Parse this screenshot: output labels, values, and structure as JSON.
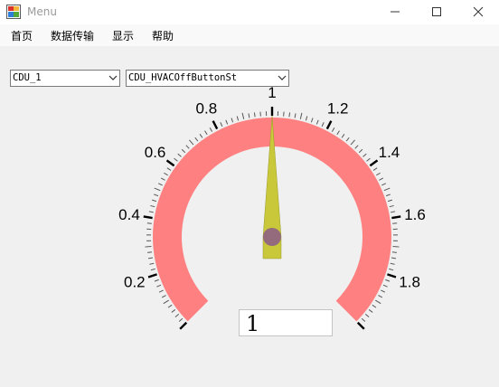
{
  "window": {
    "title": "Menu"
  },
  "menu": {
    "items": [
      "首页",
      "数据传输",
      "显示",
      "帮助"
    ]
  },
  "selectors": {
    "device": {
      "value": "CDU_1"
    },
    "signal": {
      "value": "CDU_HVACOffButtonSt"
    }
  },
  "gauge": {
    "min": 0,
    "max": 2,
    "value": 1,
    "labels": [
      "0.2",
      "0.4",
      "0.6",
      "0.8",
      "1",
      "1.2",
      "1.4",
      "1.6",
      "1.8"
    ],
    "readout": "1",
    "colors": {
      "band": "#ff8080",
      "needle": "#c8c83a",
      "hub": "#8a5a8a"
    }
  }
}
